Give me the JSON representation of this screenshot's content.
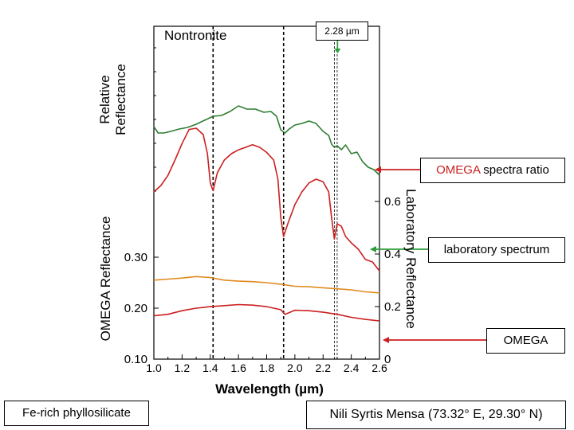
{
  "chart_data": {
    "type": "line",
    "title": "Nontronite",
    "xlabel": "Wavelength (µm)",
    "xlim": [
      1.0,
      2.6
    ],
    "x_ticks": [
      "1.0",
      "1.2",
      "1.4",
      "1.6",
      "1.8",
      "2.0",
      "2.2",
      "2.4",
      "2.6"
    ],
    "panels": {
      "relative": {
        "ylabel_line1": "Relative",
        "ylabel_line2": "Reflectance"
      },
      "omega": {
        "ylabel": "OMEGA Reflectance",
        "ylim": [
          0.1,
          0.35
        ],
        "y_ticks": [
          "0.30",
          "0.20",
          "0.10"
        ]
      },
      "laboratory": {
        "ylabel": "Laboratory Reflectance",
        "ylim": [
          0.0,
          0.75
        ],
        "y_ticks": [
          "0.6",
          "0.4",
          "0.2",
          "0"
        ]
      }
    },
    "vertical_markers": [
      1.42,
      1.92,
      2.28,
      2.3
    ],
    "marker_annotation": "2.28 µm",
    "series": [
      {
        "color": "#2e7d32",
        "x": [
          1.0,
          1.03,
          1.07,
          1.12,
          1.18,
          1.24,
          1.3,
          1.36,
          1.42,
          1.48,
          1.54,
          1.6,
          1.66,
          1.72,
          1.78,
          1.83,
          1.87,
          1.9,
          1.93,
          1.96,
          2.0,
          2.05,
          2.1,
          2.15,
          2.2,
          2.24,
          2.26,
          2.28,
          2.3,
          2.33,
          2.36,
          2.4,
          2.44,
          2.48,
          2.52,
          2.56,
          2.6
        ],
        "y": [
          0.66,
          0.58,
          0.58,
          0.6,
          0.63,
          0.65,
          0.69,
          0.74,
          0.79,
          0.8,
          0.85,
          0.92,
          0.88,
          0.88,
          0.84,
          0.85,
          0.79,
          0.62,
          0.58,
          0.63,
          0.68,
          0.7,
          0.73,
          0.7,
          0.6,
          0.55,
          0.44,
          0.4,
          0.42,
          0.37,
          0.43,
          0.32,
          0.34,
          0.22,
          0.15,
          0.12,
          0.05
        ]
      },
      {
        "color": "#cc1f1f",
        "x": [
          1.0,
          1.05,
          1.1,
          1.15,
          1.2,
          1.25,
          1.3,
          1.35,
          1.38,
          1.4,
          1.42,
          1.45,
          1.5,
          1.55,
          1.6,
          1.65,
          1.7,
          1.75,
          1.8,
          1.85,
          1.88,
          1.9,
          1.92,
          1.95,
          2.0,
          2.05,
          2.1,
          2.15,
          2.2,
          2.24,
          2.26,
          2.28,
          2.3,
          2.33,
          2.36,
          2.4,
          2.45,
          2.5,
          2.55,
          2.6
        ],
        "y": [
          0.65,
          0.7,
          0.78,
          0.9,
          1.03,
          1.14,
          1.15,
          1.1,
          0.95,
          0.72,
          0.66,
          0.8,
          0.9,
          0.95,
          0.98,
          1.0,
          1.02,
          1.0,
          0.96,
          0.9,
          0.75,
          0.45,
          0.3,
          0.4,
          0.55,
          0.65,
          0.72,
          0.75,
          0.73,
          0.65,
          0.45,
          0.28,
          0.4,
          0.38,
          0.3,
          0.25,
          0.2,
          0.12,
          0.1,
          0.03
        ]
      },
      {
        "color": "#e08a1e",
        "x": [
          1.0,
          1.1,
          1.2,
          1.3,
          1.4,
          1.5,
          1.6,
          1.7,
          1.8,
          1.9,
          2.0,
          2.1,
          2.2,
          2.3,
          2.4,
          2.5,
          2.6
        ],
        "y": [
          0.255,
          0.257,
          0.259,
          0.262,
          0.26,
          0.255,
          0.253,
          0.252,
          0.25,
          0.247,
          0.243,
          0.242,
          0.24,
          0.238,
          0.236,
          0.232,
          0.23
        ]
      },
      {
        "color": "#cc1f1f",
        "x": [
          1.0,
          1.1,
          1.2,
          1.3,
          1.4,
          1.5,
          1.6,
          1.7,
          1.8,
          1.9,
          1.93,
          2.0,
          2.1,
          2.2,
          2.3,
          2.4,
          2.5,
          2.6
        ],
        "y": [
          0.185,
          0.188,
          0.195,
          0.2,
          0.203,
          0.205,
          0.207,
          0.206,
          0.203,
          0.197,
          0.188,
          0.196,
          0.195,
          0.192,
          0.188,
          0.182,
          0.178,
          0.175
        ]
      }
    ]
  },
  "callouts": {
    "omega_ratio_prefix": "OMEGA",
    "omega_ratio_suffix": " spectra ratio",
    "laboratory": "laboratory spectrum",
    "omega": "OMEGA"
  },
  "footer": {
    "left": "Fe-rich phyllosilicate",
    "right": "Nili Syrtis Mensa (73.32° E, 29.30° N)"
  },
  "colors": {
    "arrow_red": "#cc1f1f",
    "arrow_green": "#2e9d3a",
    "omega_word": "#cc1f1f"
  }
}
